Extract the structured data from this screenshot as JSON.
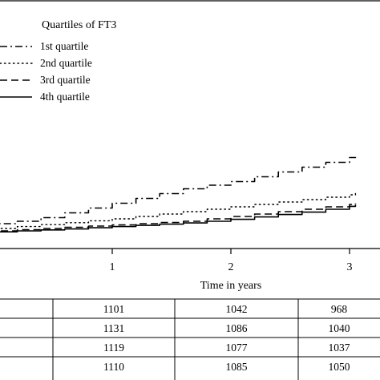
{
  "chart_data": {
    "type": "line",
    "xlabel": "Time in years",
    "x_ticks": [
      1,
      2,
      3
    ],
    "xlim": [
      -0.85,
      3.05
    ],
    "ylim": [
      0,
      1
    ],
    "legend": {
      "title": "Quartiles of FT3",
      "placement": "top-left"
    },
    "series": [
      {
        "name": "1st quartile",
        "style": "dash-dot",
        "x": [
          -0.85,
          -0.6,
          -0.4,
          -0.2,
          0,
          0.2,
          0.4,
          0.6,
          0.8,
          1.0,
          1.2,
          1.4,
          1.6,
          1.8,
          2.0,
          2.2,
          2.4,
          2.6,
          2.8,
          3.0,
          3.05
        ],
        "y": [
          0.005,
          0.012,
          0.022,
          0.035,
          0.05,
          0.06,
          0.075,
          0.095,
          0.115,
          0.135,
          0.155,
          0.175,
          0.195,
          0.21,
          0.225,
          0.245,
          0.265,
          0.285,
          0.305,
          0.325,
          0.335
        ]
      },
      {
        "name": "2nd quartile",
        "style": "dotted",
        "x": [
          -0.85,
          -0.6,
          -0.4,
          -0.2,
          0,
          0.2,
          0.4,
          0.6,
          0.8,
          1.0,
          1.2,
          1.4,
          1.6,
          1.8,
          2.0,
          2.2,
          2.4,
          2.6,
          2.8,
          3.0,
          3.05
        ],
        "y": [
          0.004,
          0.008,
          0.014,
          0.022,
          0.03,
          0.038,
          0.046,
          0.054,
          0.062,
          0.07,
          0.08,
          0.09,
          0.1,
          0.11,
          0.12,
          0.13,
          0.14,
          0.15,
          0.16,
          0.17,
          0.175
        ]
      },
      {
        "name": "3rd quartile",
        "style": "dashed",
        "x": [
          -0.85,
          -0.6,
          -0.4,
          -0.2,
          0,
          0.2,
          0.4,
          0.6,
          0.8,
          1.0,
          1.2,
          1.4,
          1.6,
          1.8,
          2.0,
          2.2,
          2.4,
          2.6,
          2.8,
          3.0,
          3.05
        ],
        "y": [
          0.003,
          0.006,
          0.01,
          0.015,
          0.02,
          0.025,
          0.03,
          0.035,
          0.04,
          0.045,
          0.05,
          0.055,
          0.06,
          0.07,
          0.08,
          0.09,
          0.1,
          0.11,
          0.12,
          0.13,
          0.135
        ]
      },
      {
        "name": "4th quartile",
        "style": "solid",
        "x": [
          -0.85,
          -0.6,
          -0.4,
          -0.2,
          0,
          0.2,
          0.4,
          0.6,
          0.8,
          1.0,
          1.2,
          1.4,
          1.6,
          1.8,
          2.0,
          2.2,
          2.4,
          2.6,
          2.8,
          3.0,
          3.05
        ],
        "y": [
          0.003,
          0.005,
          0.008,
          0.012,
          0.016,
          0.02,
          0.024,
          0.028,
          0.033,
          0.038,
          0.043,
          0.048,
          0.053,
          0.06,
          0.068,
          0.078,
          0.088,
          0.098,
          0.11,
          0.122,
          0.13
        ]
      }
    ],
    "risk_table": {
      "rows": [
        [
          "1101",
          "1042",
          "968"
        ],
        [
          "1131",
          "1086",
          "1040"
        ],
        [
          "1119",
          "1077",
          "1037"
        ],
        [
          "1110",
          "1085",
          "1050"
        ]
      ]
    }
  }
}
